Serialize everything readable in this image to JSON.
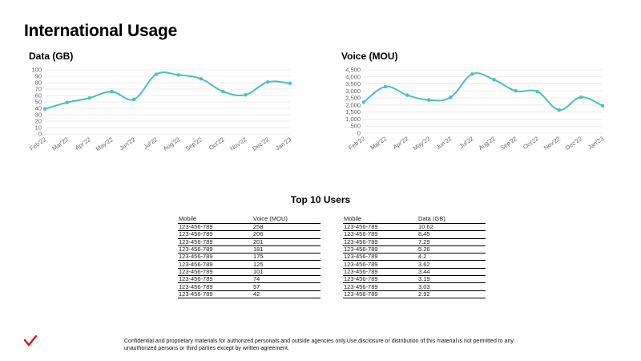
{
  "page": {
    "title": "International Usage",
    "top_title": "Top 10 Users",
    "footer": "Confidential and proprietary materials for authorized personals and outside agencies only.Use,disclosure or distribution of this material is not permitted to any unauthorized persons or third parties except by written agreement."
  },
  "colors": {
    "line": "#48c0c0",
    "grid": "#e6e6e6",
    "logo": "#e0121a"
  },
  "icons": {
    "logo": "checkmark-logo-icon"
  },
  "chart_data": [
    {
      "type": "line",
      "title": "Data (GB)",
      "categories": [
        "Feb'22",
        "Mar'22",
        "Apr'22",
        "May'22",
        "Jun'22",
        "Jul'22",
        "Aug'22",
        "Sep'22",
        "Oct'22",
        "Nov'22",
        "Dec'22",
        "Jan'23"
      ],
      "values": [
        39,
        49,
        56,
        66,
        54,
        93,
        92,
        86,
        66,
        61,
        81,
        79
      ],
      "ylim": [
        0,
        100
      ],
      "yticks": [
        "0",
        "10",
        "20",
        "30",
        "40",
        "50",
        "60",
        "70",
        "80",
        "90",
        "100"
      ],
      "ytick_values": [
        0,
        10,
        20,
        30,
        40,
        50,
        60,
        70,
        80,
        90,
        100
      ],
      "grid": true
    },
    {
      "type": "line",
      "title": "Voice (MOU)",
      "categories": [
        "Feb'22",
        "Mar'22",
        "Apr'22",
        "May'22",
        "Jun'22",
        "Jul'22",
        "Aug'22",
        "Sep'22",
        "Oct'22",
        "Nov'22",
        "Dec'22",
        "Jan'23"
      ],
      "values": [
        2200,
        3300,
        2700,
        2350,
        2550,
        4200,
        3800,
        3000,
        2950,
        1650,
        2550,
        1950
      ],
      "ylim": [
        0,
        4500
      ],
      "yticks": [
        "0",
        "500",
        "1,000",
        "1,500",
        "2,000",
        "2,500",
        "3,000",
        "3,500",
        "4,000",
        "4,500"
      ],
      "ytick_values": [
        0,
        500,
        1000,
        1500,
        2000,
        2500,
        3000,
        3500,
        4000,
        4500
      ],
      "grid": true
    }
  ],
  "voice_table": {
    "headers": [
      "Mobile",
      "Voice (MOU)"
    ],
    "rows": [
      [
        "123-456-789",
        "258"
      ],
      [
        "123-456-789",
        "206"
      ],
      [
        "123-456-789",
        "201"
      ],
      [
        "123-456-789",
        "181"
      ],
      [
        "123-456-789",
        "175"
      ],
      [
        "123-456-789",
        "125"
      ],
      [
        "123-456-789",
        "101"
      ],
      [
        "123-456-789",
        "74"
      ],
      [
        "123-456-789",
        "57"
      ],
      [
        "123-456-789",
        "42"
      ]
    ]
  },
  "data_table": {
    "headers": [
      "Mobile",
      "Data (GB)"
    ],
    "rows": [
      [
        "123-456-789",
        "10.62"
      ],
      [
        "123-456-789",
        "8.45"
      ],
      [
        "123-456-789",
        "7.29"
      ],
      [
        "123-456-789",
        "5.26"
      ],
      [
        "123-456-789",
        "4.2"
      ],
      [
        "123-456-789",
        "3.62"
      ],
      [
        "123-456-789",
        "3.44"
      ],
      [
        "123-456-789",
        "3.19"
      ],
      [
        "123-456-789",
        "3.03"
      ],
      [
        "123-456-789",
        "2.92"
      ]
    ]
  }
}
